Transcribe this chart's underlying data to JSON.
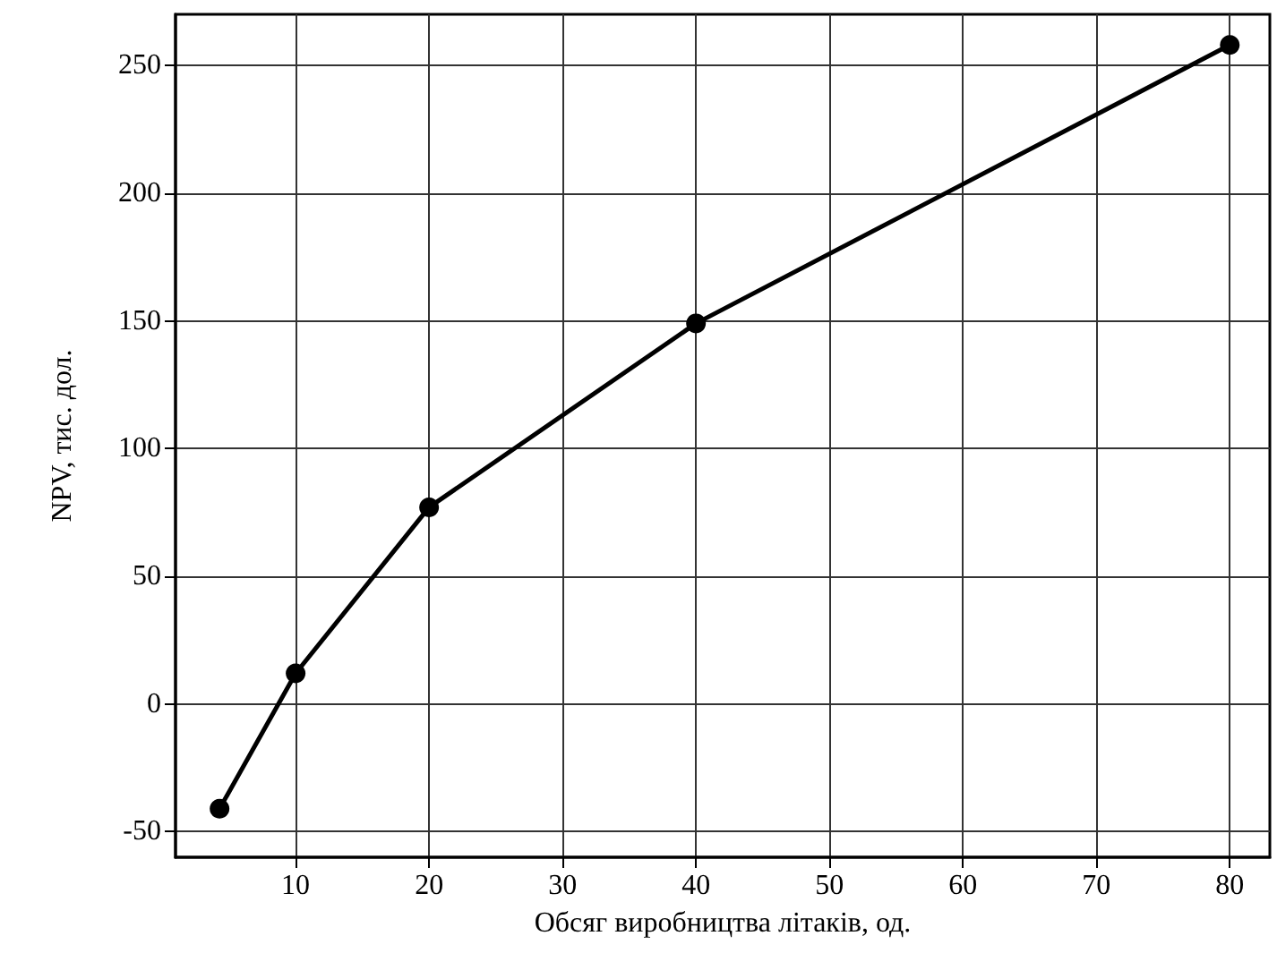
{
  "chart_data": {
    "type": "line",
    "xlabel": "Обсяг виробництва літаків, од.",
    "ylabel": "NPV, тис. дол.",
    "x": [
      4.3,
      10,
      20,
      40,
      80
    ],
    "series": [
      {
        "color": "#000000",
        "values": [
          -41,
          12,
          77,
          149,
          258
        ]
      }
    ],
    "xlim": [
      1,
      83
    ],
    "xticks": [
      10,
      20,
      30,
      40,
      50,
      60,
      70,
      80
    ],
    "ylim": [
      -60,
      270
    ],
    "yticks": [
      -50,
      0,
      50,
      100,
      150,
      200,
      250
    ],
    "grid": true,
    "marker": "circle",
    "line_style": "solid"
  }
}
